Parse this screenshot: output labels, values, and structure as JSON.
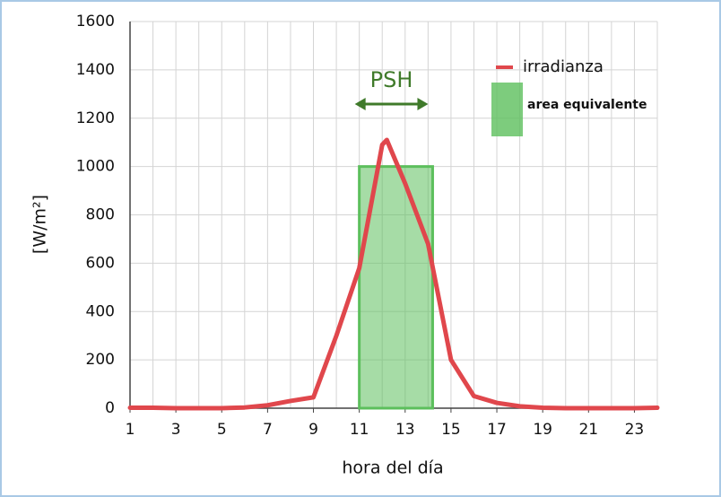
{
  "chart_data": {
    "type": "line",
    "x_label": "hora del día",
    "y_label": "[W/m²]",
    "xlim": [
      1,
      24
    ],
    "xticks": [
      1,
      3,
      5,
      7,
      9,
      11,
      13,
      15,
      17,
      19,
      21,
      23
    ],
    "ylim": [
      0,
      1600
    ],
    "yticks": [
      0,
      200,
      400,
      600,
      800,
      1000,
      1200,
      1400,
      1600
    ],
    "grid": true,
    "series": [
      {
        "name": "irradianza",
        "color": "#e0474c",
        "x": [
          1,
          2,
          3,
          4,
          5,
          6,
          7,
          8,
          9,
          10,
          11,
          12,
          12.2,
          13,
          14,
          15,
          16,
          17,
          18,
          19,
          20,
          21,
          22,
          23,
          24
        ],
        "values": [
          2,
          2,
          0,
          0,
          0,
          3,
          12,
          30,
          45,
          300,
          580,
          1090,
          1110,
          930,
          680,
          200,
          50,
          22,
          8,
          2,
          0,
          0,
          0,
          0,
          2
        ]
      }
    ],
    "area": {
      "name": "area equivalente",
      "color": "#5cbf5c",
      "x": [
        11,
        14.2
      ],
      "value": 1000
    },
    "annotation": {
      "text": "PSH",
      "color": "#3f7a2a"
    }
  }
}
